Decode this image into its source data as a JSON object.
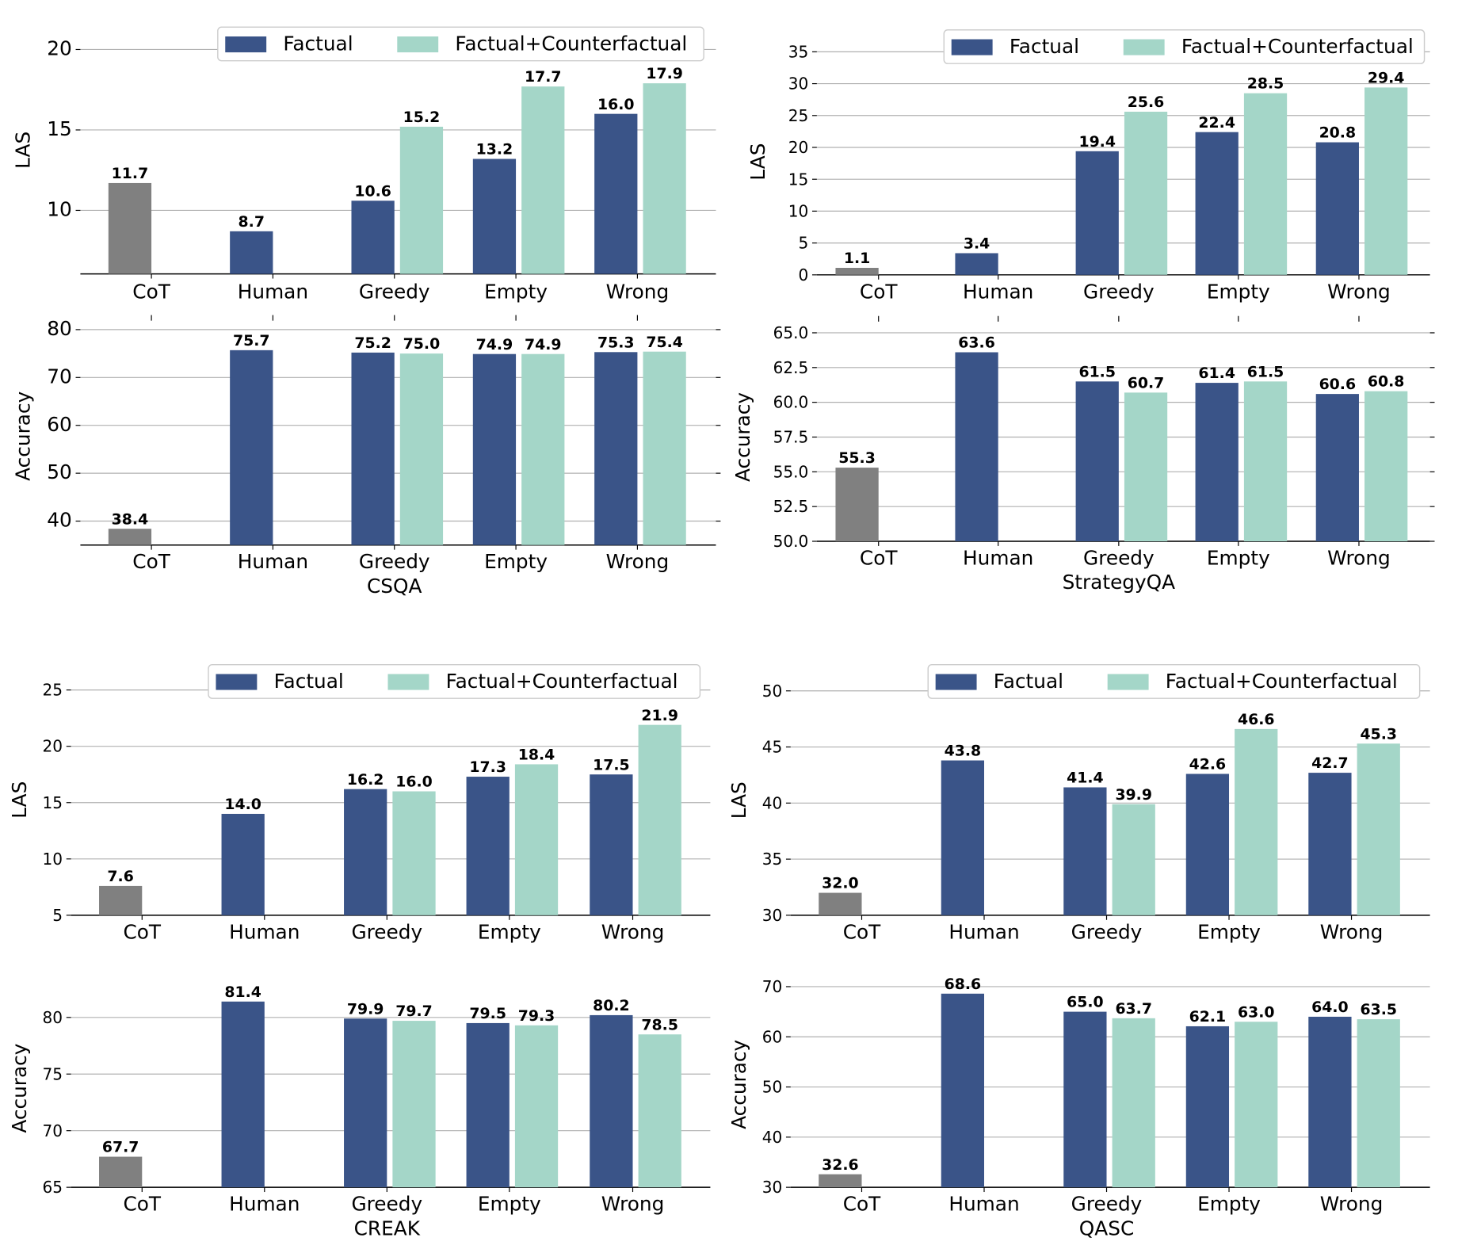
{
  "colors": {
    "factual": "#3a5488",
    "counterfactual": "#a4d6c8",
    "cot": "#808080"
  },
  "legend": {
    "factual": "Factual",
    "counterfactual": "Factual+Counterfactual"
  },
  "chart_data": [
    {
      "type": "bar",
      "dataset": "CSQA",
      "title": "",
      "xlabel": "CSQA",
      "ylabel": "LAS",
      "categories": [
        "CoT",
        "Human",
        "Greedy",
        "Empty",
        "Wrong"
      ],
      "ylim": [
        6.05,
        21.45
      ],
      "yticks": [
        "10",
        "15",
        "20"
      ],
      "ytick_values": [
        10,
        15,
        20
      ],
      "grid": true,
      "legend": "top-right",
      "cot_value": 11.7,
      "series": [
        {
          "name": "Factual",
          "values": [
            null,
            8.7,
            10.6,
            13.2,
            16.0
          ]
        },
        {
          "name": "Factual+Counterfactual",
          "values": [
            null,
            null,
            15.2,
            17.7,
            17.9
          ]
        }
      ]
    },
    {
      "type": "bar",
      "dataset": "CSQA",
      "xlabel": "CSQA",
      "ylabel": "Accuracy",
      "categories": [
        "CoT",
        "Human",
        "Greedy",
        "Empty",
        "Wrong"
      ],
      "ylim": [
        35.0,
        80.5
      ],
      "yticks": [
        "40",
        "50",
        "60",
        "70",
        "80"
      ],
      "ytick_values": [
        40,
        50,
        60,
        70,
        80
      ],
      "grid": true,
      "cot_value": 38.4,
      "series": [
        {
          "name": "Factual",
          "values": [
            null,
            75.7,
            75.2,
            74.9,
            75.3
          ]
        },
        {
          "name": "Factual+Counterfactual",
          "values": [
            null,
            null,
            75.0,
            74.9,
            75.4
          ]
        }
      ]
    },
    {
      "type": "bar",
      "dataset": "StrategyQA",
      "xlabel": "StrategyQA",
      "ylabel": "LAS",
      "categories": [
        "CoT",
        "Human",
        "Greedy",
        "Empty",
        "Wrong"
      ],
      "ylim": [
        0,
        35.5
      ],
      "yticks": [
        "0",
        "5",
        "10",
        "15",
        "20",
        "25",
        "30",
        "35"
      ],
      "ytick_values": [
        0,
        5,
        10,
        15,
        20,
        25,
        30,
        35
      ],
      "grid": true,
      "legend": "top-right",
      "cot_value": 1.1,
      "series": [
        {
          "name": "Factual",
          "values": [
            null,
            3.4,
            19.4,
            22.4,
            20.8
          ]
        },
        {
          "name": "Factual+Counterfactual",
          "values": [
            null,
            null,
            25.6,
            28.5,
            29.4
          ]
        }
      ]
    },
    {
      "type": "bar",
      "dataset": "StrategyQA",
      "xlabel": "StrategyQA",
      "ylabel": "Accuracy",
      "categories": [
        "CoT",
        "Human",
        "Greedy",
        "Empty",
        "Wrong"
      ],
      "ylim": [
        50.0,
        65.0
      ],
      "yticks": [
        "50.0",
        "52.5",
        "55.0",
        "57.5",
        "60.0",
        "62.5",
        "65.0"
      ],
      "ytick_values": [
        50.0,
        52.5,
        55.0,
        57.5,
        60.0,
        62.5,
        65.0
      ],
      "grid": true,
      "cot_value": 55.3,
      "series": [
        {
          "name": "Factual",
          "values": [
            null,
            63.6,
            61.5,
            61.4,
            60.6
          ]
        },
        {
          "name": "Factual+Counterfactual",
          "values": [
            null,
            null,
            60.7,
            61.5,
            60.8
          ]
        }
      ]
    },
    {
      "type": "bar",
      "dataset": "CREAK",
      "xlabel": "CREAK",
      "ylabel": "LAS",
      "categories": [
        "CoT",
        "Human",
        "Greedy",
        "Empty",
        "Wrong"
      ],
      "ylim": [
        5,
        25.5
      ],
      "yticks": [
        "5",
        "10",
        "15",
        "20",
        "25"
      ],
      "ytick_values": [
        5,
        10,
        15,
        20,
        25
      ],
      "grid": true,
      "legend": "top-right",
      "cot_value": 7.6,
      "series": [
        {
          "name": "Factual",
          "values": [
            null,
            14.0,
            16.2,
            17.3,
            17.5
          ]
        },
        {
          "name": "Factual+Counterfactual",
          "values": [
            null,
            null,
            16.0,
            18.4,
            21.9
          ]
        }
      ]
    },
    {
      "type": "bar",
      "dataset": "CREAK",
      "xlabel": "CREAK",
      "ylabel": "Accuracy",
      "categories": [
        "CoT",
        "Human",
        "Greedy",
        "Empty",
        "Wrong"
      ],
      "ylim": [
        65,
        82.5
      ],
      "yticks": [
        "65",
        "70",
        "75",
        "80"
      ],
      "ytick_values": [
        65,
        70,
        75,
        80
      ],
      "grid": true,
      "cot_value": 67.7,
      "series": [
        {
          "name": "Factual",
          "values": [
            null,
            81.4,
            79.9,
            79.5,
            80.2
          ]
        },
        {
          "name": "Factual+Counterfactual",
          "values": [
            null,
            null,
            79.7,
            79.3,
            78.5
          ]
        }
      ]
    },
    {
      "type": "bar",
      "dataset": "QASC",
      "xlabel": "QASC",
      "ylabel": "LAS",
      "categories": [
        "CoT",
        "Human",
        "Greedy",
        "Empty",
        "Wrong"
      ],
      "ylim": [
        30,
        50.5
      ],
      "yticks": [
        "30",
        "35",
        "40",
        "45",
        "50"
      ],
      "ytick_values": [
        30,
        35,
        40,
        45,
        50
      ],
      "grid": true,
      "legend": "top-right",
      "cot_value": 32.0,
      "series": [
        {
          "name": "Factual",
          "values": [
            null,
            43.8,
            41.4,
            42.6,
            42.7
          ]
        },
        {
          "name": "Factual+Counterfactual",
          "values": [
            null,
            null,
            39.9,
            46.6,
            45.3
          ]
        }
      ]
    },
    {
      "type": "bar",
      "dataset": "QASC",
      "xlabel": "QASC",
      "ylabel": "Accuracy",
      "categories": [
        "CoT",
        "Human",
        "Greedy",
        "Empty",
        "Wrong"
      ],
      "ylim": [
        30,
        71
      ],
      "yticks": [
        "30",
        "40",
        "50",
        "60",
        "70"
      ],
      "ytick_values": [
        30,
        40,
        50,
        60,
        70
      ],
      "grid": true,
      "cot_value": 32.6,
      "series": [
        {
          "name": "Factual",
          "values": [
            null,
            68.6,
            65.0,
            62.1,
            64.0
          ]
        },
        {
          "name": "Factual+Counterfactual",
          "values": [
            null,
            null,
            63.7,
            63.0,
            63.5
          ]
        }
      ]
    }
  ]
}
